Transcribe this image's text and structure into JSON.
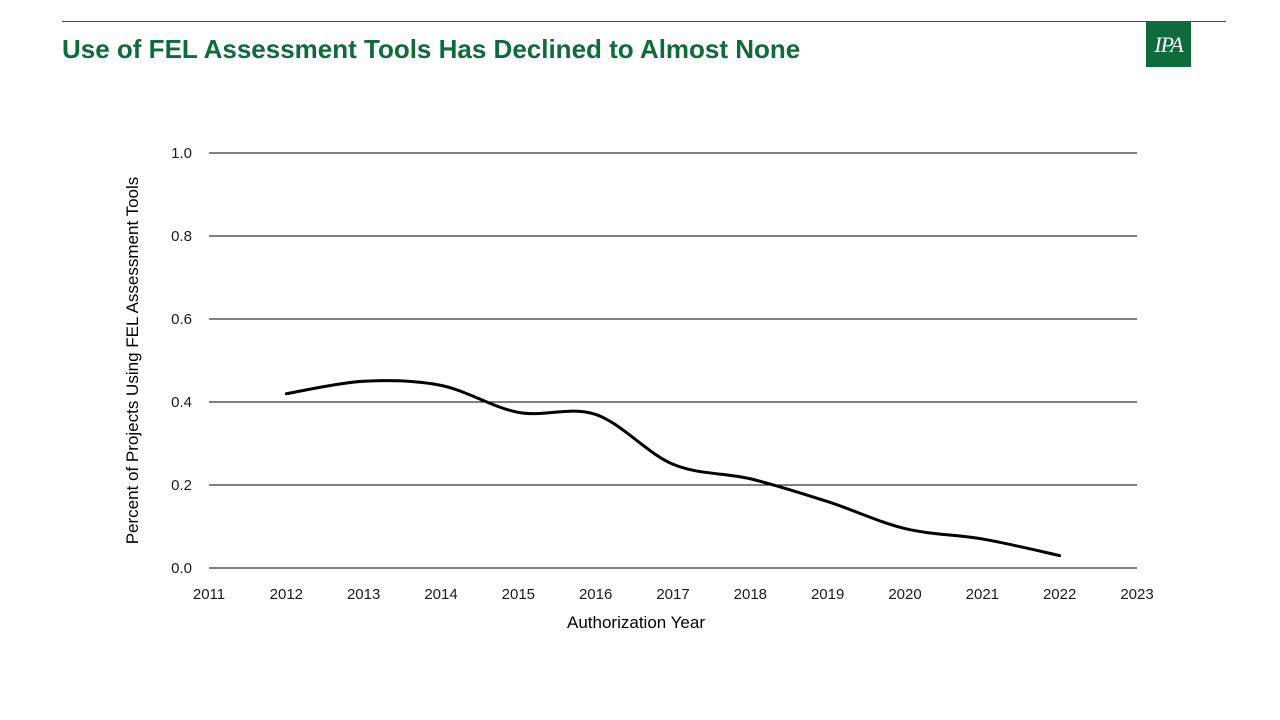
{
  "header": {
    "title": "Use of FEL Assessment Tools Has Declined to Almost None",
    "logo_text": "IPA"
  },
  "colors": {
    "brand": "#0f6a3c",
    "line": "#000000",
    "gridline": "#000000"
  },
  "chart_data": {
    "type": "line",
    "title": "",
    "xlabel": "Authorization Year",
    "ylabel": "Percent of Projects Using FEL Assessment Tools",
    "xlim": [
      2011,
      2023
    ],
    "ylim": [
      0.0,
      1.0
    ],
    "x_ticks": [
      "2011",
      "2012",
      "2013",
      "2014",
      "2015",
      "2016",
      "2017",
      "2018",
      "2019",
      "2020",
      "2021",
      "2022",
      "2023"
    ],
    "y_ticks": [
      "0.0",
      "0.2",
      "0.4",
      "0.6",
      "0.8",
      "1.0"
    ],
    "grid": "horizontal",
    "smooth": true,
    "series": [
      {
        "x": [
          2012,
          2013,
          2014,
          2015,
          2016,
          2017,
          2018,
          2019,
          2020,
          2021,
          2022
        ],
        "values": [
          0.42,
          0.45,
          0.44,
          0.375,
          0.37,
          0.25,
          0.215,
          0.16,
          0.095,
          0.07,
          0.03
        ]
      }
    ]
  }
}
